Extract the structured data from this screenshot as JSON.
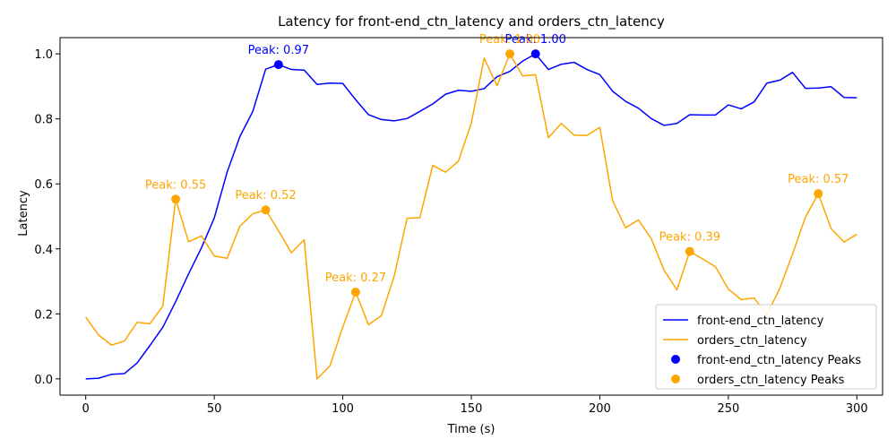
{
  "chart_data": {
    "type": "line",
    "title": "Latency for front-end_ctn_latency and orders_ctn_latency",
    "xlabel": "Time (s)",
    "ylabel": "Latency",
    "xlim": [
      -10,
      310
    ],
    "ylim": [
      -0.05,
      1.05
    ],
    "x_ticks": [
      0,
      50,
      100,
      150,
      200,
      250,
      300
    ],
    "y_ticks": [
      0.0,
      0.2,
      0.4,
      0.6,
      0.8,
      1.0
    ],
    "x_tick_labels": [
      "0",
      "50",
      "100",
      "150",
      "200",
      "250",
      "300"
    ],
    "y_tick_labels": [
      "0.0",
      "0.2",
      "0.4",
      "0.6",
      "0.8",
      "1.0"
    ],
    "grid": false,
    "legend": "lower-right",
    "x": [
      0,
      5,
      10,
      15,
      20,
      25,
      30,
      35,
      40,
      45,
      50,
      55,
      60,
      65,
      70,
      75,
      80,
      85,
      90,
      95,
      100,
      105,
      110,
      115,
      120,
      125,
      130,
      135,
      140,
      145,
      150,
      155,
      160,
      165,
      170,
      175,
      180,
      185,
      190,
      195,
      200,
      205,
      210,
      215,
      220,
      225,
      230,
      235,
      240,
      245,
      250,
      255,
      260,
      265,
      270,
      275,
      280,
      285,
      290,
      295,
      300
    ],
    "series": [
      {
        "name": "front-end_ctn_latency",
        "color": "#0000ff",
        "values": [
          0.0,
          0.002,
          0.014,
          0.016,
          0.049,
          0.103,
          0.159,
          0.238,
          0.323,
          0.403,
          0.495,
          0.636,
          0.746,
          0.823,
          0.953,
          0.967,
          0.952,
          0.95,
          0.906,
          0.91,
          0.909,
          0.859,
          0.813,
          0.798,
          0.794,
          0.801,
          0.823,
          0.846,
          0.876,
          0.888,
          0.885,
          0.893,
          0.93,
          0.946,
          0.978,
          1.0,
          0.952,
          0.968,
          0.974,
          0.952,
          0.936,
          0.885,
          0.854,
          0.833,
          0.801,
          0.78,
          0.786,
          0.813,
          0.812,
          0.812,
          0.843,
          0.831,
          0.852,
          0.91,
          0.919,
          0.943,
          0.894,
          0.895,
          0.899,
          0.866,
          0.865
        ],
        "peaks": [
          {
            "x": 75,
            "y": 0.967,
            "label": "Peak: 0.97"
          },
          {
            "x": 175,
            "y": 1.0,
            "label": "Peak: 1.00"
          }
        ]
      },
      {
        "name": "orders_ctn_latency",
        "color": "#ffa500",
        "values": [
          0.19,
          0.135,
          0.104,
          0.116,
          0.174,
          0.17,
          0.224,
          0.553,
          0.422,
          0.44,
          0.378,
          0.371,
          0.47,
          0.508,
          0.52,
          0.456,
          0.388,
          0.428,
          0.0,
          0.04,
          0.16,
          0.267,
          0.167,
          0.194,
          0.316,
          0.494,
          0.496,
          0.657,
          0.636,
          0.67,
          0.787,
          0.987,
          0.902,
          1.0,
          0.932,
          0.936,
          0.742,
          0.786,
          0.75,
          0.749,
          0.774,
          0.548,
          0.465,
          0.489,
          0.432,
          0.334,
          0.274,
          0.392,
          0.369,
          0.345,
          0.276,
          0.244,
          0.249,
          0.198,
          0.278,
          0.385,
          0.498,
          0.57,
          0.462,
          0.421,
          0.445
        ],
        "peaks": [
          {
            "x": 35,
            "y": 0.553,
            "label": "Peak: 0.55"
          },
          {
            "x": 70,
            "y": 0.52,
            "label": "Peak: 0.52"
          },
          {
            "x": 105,
            "y": 0.267,
            "label": "Peak: 0.27"
          },
          {
            "x": 165,
            "y": 1.0,
            "label": "Peak: 1.00"
          },
          {
            "x": 235,
            "y": 0.392,
            "label": "Peak: 0.39"
          },
          {
            "x": 285,
            "y": 0.57,
            "label": "Peak: 0.57"
          }
        ]
      }
    ],
    "legend_entries": [
      {
        "label": "front-end_ctn_latency",
        "kind": "line",
        "color": "#0000ff"
      },
      {
        "label": "orders_ctn_latency",
        "kind": "line",
        "color": "#ffa500"
      },
      {
        "label": "front-end_ctn_latency Peaks",
        "kind": "marker",
        "color": "#0000ff"
      },
      {
        "label": "orders_ctn_latency Peaks",
        "kind": "marker",
        "color": "#ffa500"
      }
    ]
  }
}
